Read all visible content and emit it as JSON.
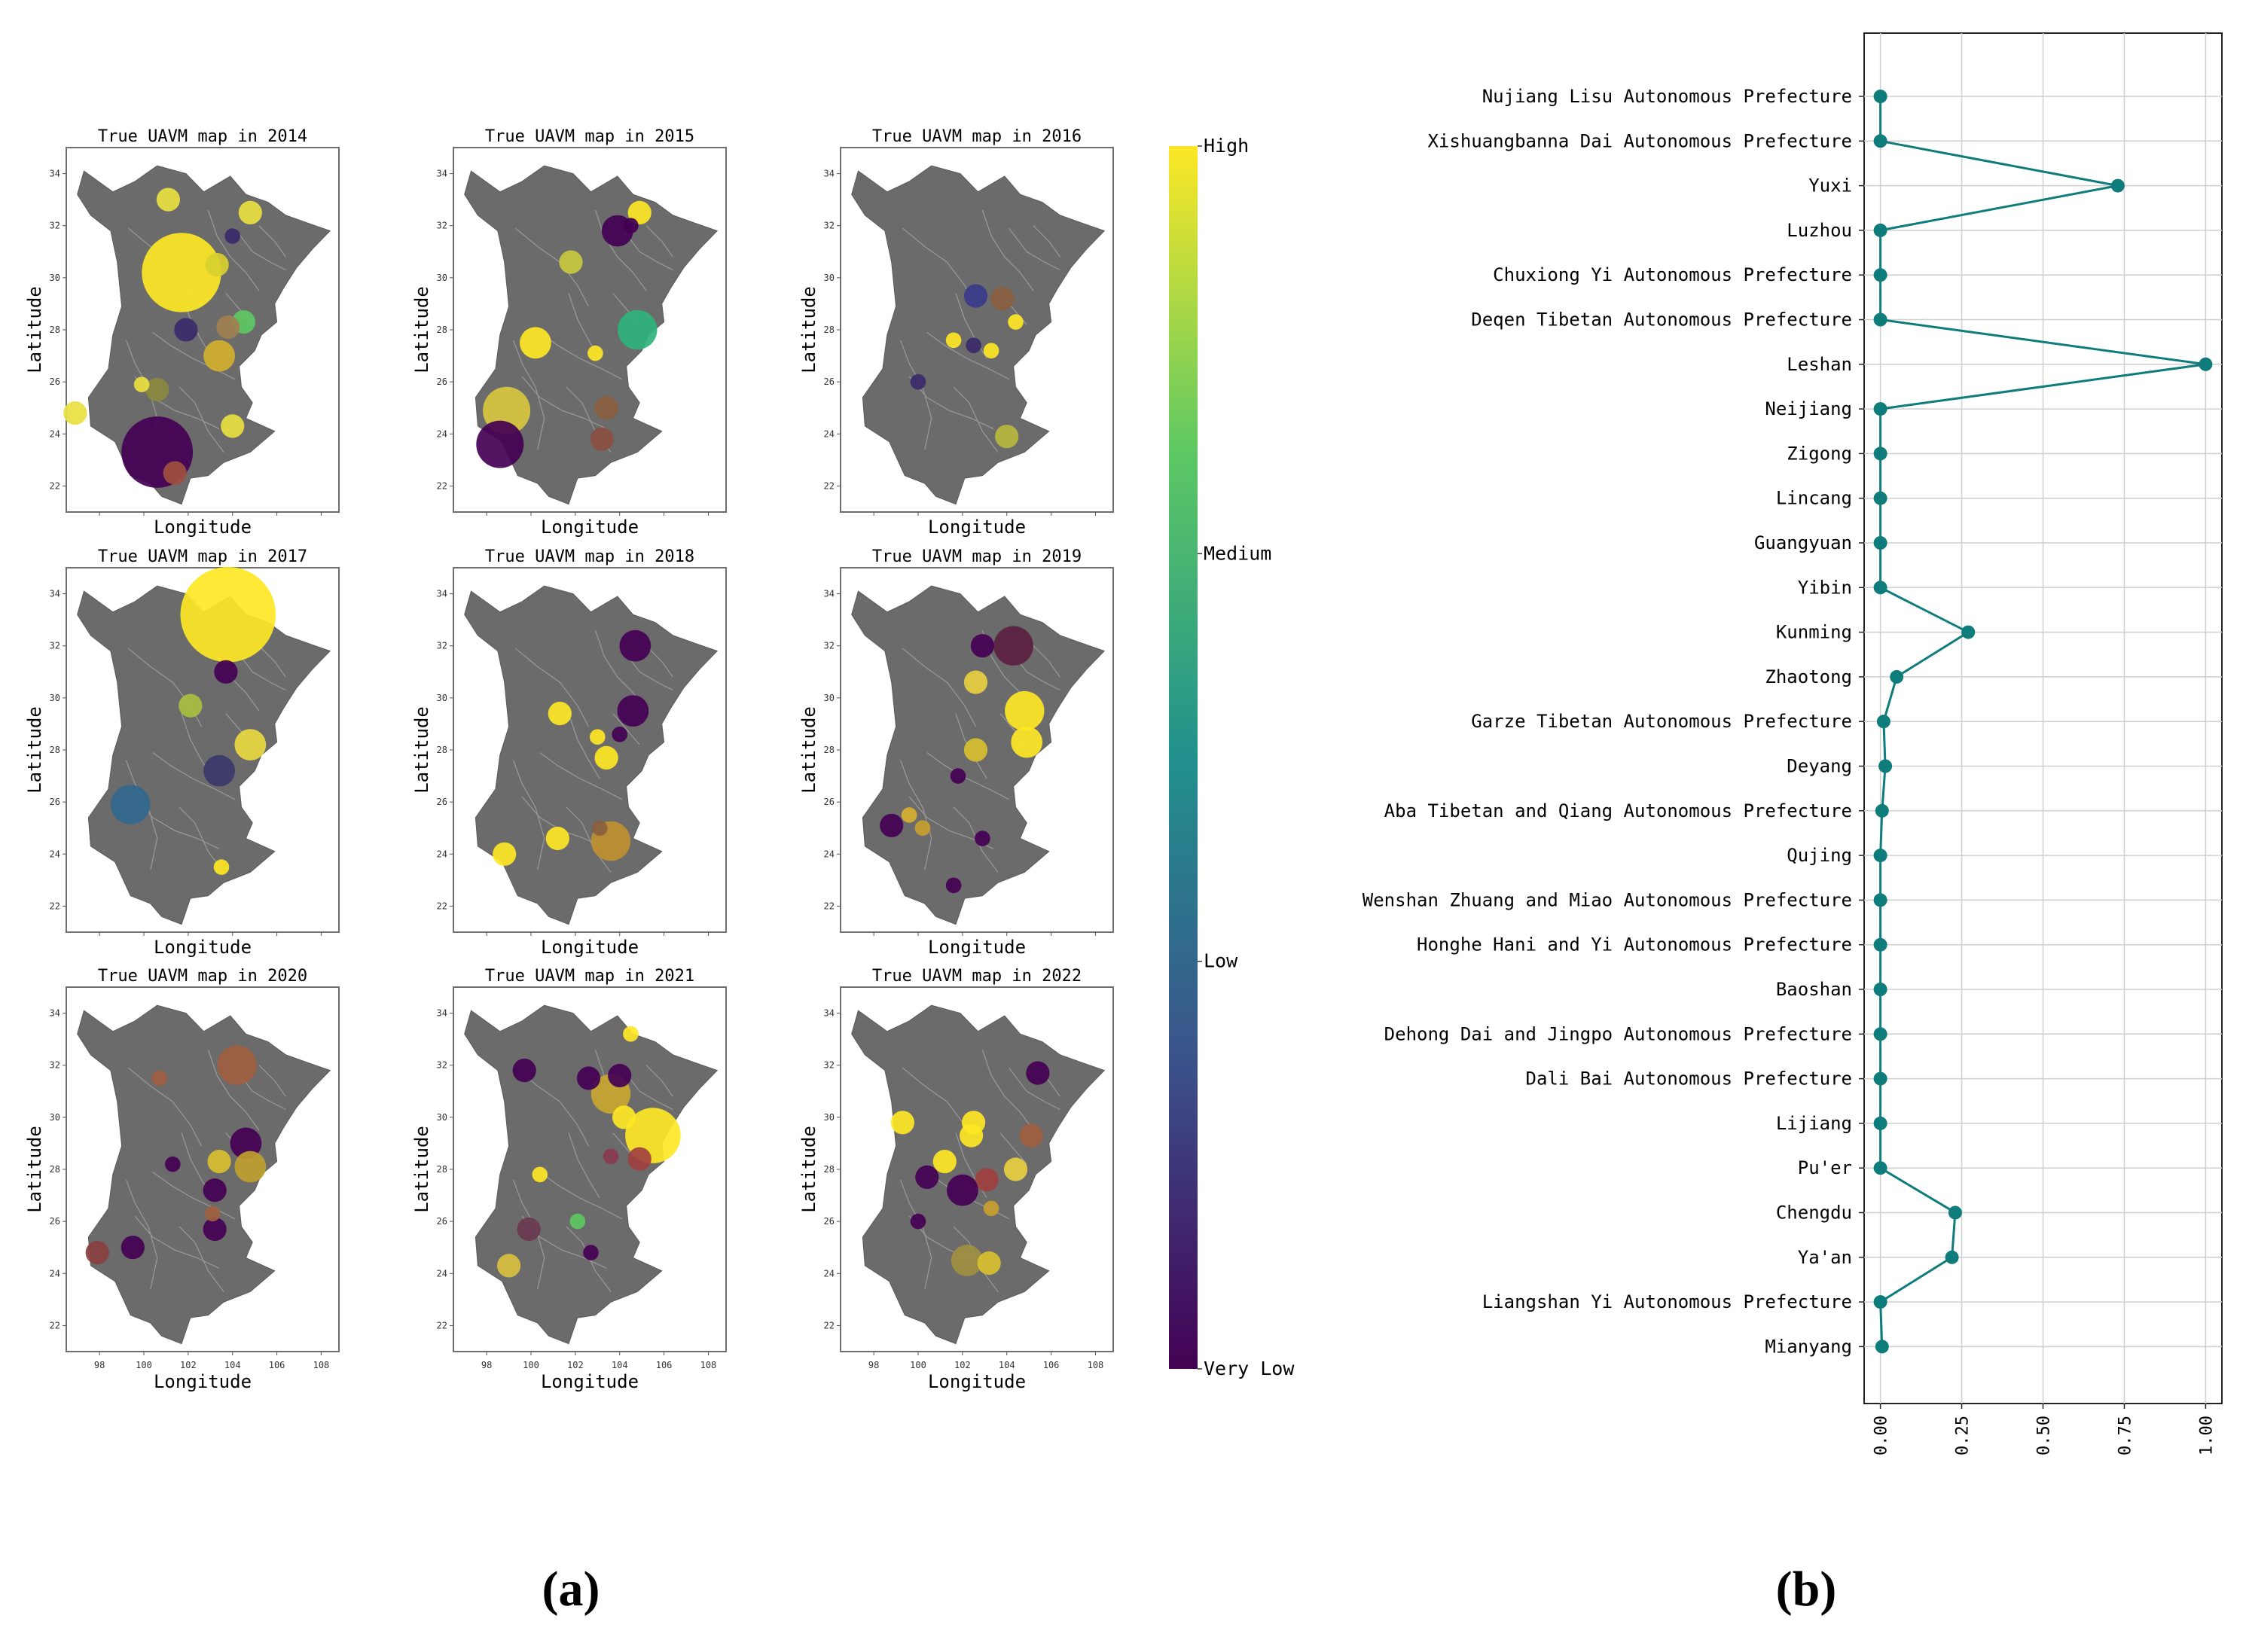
{
  "panel_labels": {
    "a": "(a)",
    "b": "(b)"
  },
  "chart_data": [
    {
      "type": "scatter",
      "panel": "(a)",
      "description_kind": "small multiples bubble maps",
      "xlabel": "Longitude",
      "ylabel": "Latitude",
      "xticks": [
        98,
        100,
        102,
        104,
        106,
        108
      ],
      "yticks": [
        22,
        24,
        26,
        28,
        30,
        32,
        34
      ],
      "xlim": [
        96.5,
        108.8
      ],
      "ylim": [
        21,
        35
      ],
      "map_color": "#6b6b6b",
      "colorbar": {
        "levels": [
          "Very Low",
          "Low",
          "Medium",
          "High"
        ],
        "colors": [
          "#440154",
          "#3b528b",
          "#21908d",
          "#5dc863",
          "#fde725"
        ]
      },
      "maps": [
        {
          "title": "True UAVM map in 2014",
          "points": [
            {
              "x": 101.7,
              "y": 30.2,
              "size": 9,
              "color": "#fde725"
            },
            {
              "x": 100.6,
              "y": 23.3,
              "size": 8,
              "color": "#440154"
            },
            {
              "x": 103.3,
              "y": 30.5,
              "size": 2,
              "color": "#d8d030"
            },
            {
              "x": 101.1,
              "y": 33.0,
              "size": 2,
              "color": "#e8e040"
            },
            {
              "x": 104.8,
              "y": 32.5,
              "size": 2,
              "color": "#e8e040"
            },
            {
              "x": 103.4,
              "y": 27.0,
              "size": 3,
              "color": "#d4b030"
            },
            {
              "x": 101.9,
              "y": 28.0,
              "size": 2,
              "color": "#3b2a6b"
            },
            {
              "x": 104.5,
              "y": 28.3,
              "size": 2,
              "color": "#5dc863"
            },
            {
              "x": 103.8,
              "y": 28.1,
              "size": 2,
              "color": "#a08050"
            },
            {
              "x": 96.9,
              "y": 24.8,
              "size": 2,
              "color": "#e8e040"
            },
            {
              "x": 104.0,
              "y": 24.3,
              "size": 2,
              "color": "#e8e040"
            },
            {
              "x": 100.6,
              "y": 25.7,
              "size": 2,
              "color": "#8a8a40"
            },
            {
              "x": 99.9,
              "y": 25.9,
              "size": 1,
              "color": "#e8e040"
            },
            {
              "x": 101.4,
              "y": 22.5,
              "size": 2,
              "color": "#a05040"
            },
            {
              "x": 104.0,
              "y": 31.6,
              "size": 1,
              "color": "#3b2a6b"
            }
          ]
        },
        {
          "title": "True UAVM map in 2015",
          "points": [
            {
              "x": 98.9,
              "y": 24.9,
              "size": 5,
              "color": "#d8c840"
            },
            {
              "x": 98.6,
              "y": 23.6,
              "size": 5,
              "color": "#440154"
            },
            {
              "x": 104.8,
              "y": 28.0,
              "size": 4,
              "color": "#2fb47c"
            },
            {
              "x": 103.9,
              "y": 31.8,
              "size": 3,
              "color": "#440154"
            },
            {
              "x": 104.9,
              "y": 32.5,
              "size": 2,
              "color": "#fde725"
            },
            {
              "x": 101.8,
              "y": 30.6,
              "size": 2,
              "color": "#c8c840"
            },
            {
              "x": 100.2,
              "y": 27.5,
              "size": 3,
              "color": "#fde725"
            },
            {
              "x": 103.4,
              "y": 25.0,
              "size": 2,
              "color": "#8a6040"
            },
            {
              "x": 103.2,
              "y": 23.8,
              "size": 2,
              "color": "#8a5040"
            },
            {
              "x": 102.9,
              "y": 27.1,
              "size": 1,
              "color": "#fde725"
            },
            {
              "x": 104.5,
              "y": 32.0,
              "size": 1,
              "color": "#440154"
            }
          ]
        },
        {
          "title": "True UAVM map in 2016",
          "points": [
            {
              "x": 102.6,
              "y": 29.3,
              "size": 2,
              "color": "#3b3a8b"
            },
            {
              "x": 103.8,
              "y": 29.2,
              "size": 2,
              "color": "#8a6040"
            },
            {
              "x": 102.5,
              "y": 27.4,
              "size": 1,
              "color": "#3b2a6b"
            },
            {
              "x": 103.3,
              "y": 27.2,
              "size": 1,
              "color": "#fde725"
            },
            {
              "x": 101.6,
              "y": 27.6,
              "size": 1,
              "color": "#fde725"
            },
            {
              "x": 104.4,
              "y": 28.3,
              "size": 1,
              "color": "#fde725"
            },
            {
              "x": 104.0,
              "y": 23.9,
              "size": 2,
              "color": "#b8b840"
            },
            {
              "x": 100.0,
              "y": 26.0,
              "size": 1,
              "color": "#3b2a6b"
            }
          ]
        },
        {
          "title": "True UAVM map in 2017",
          "points": [
            {
              "x": 103.8,
              "y": 33.2,
              "size": 11,
              "color": "#fde725"
            },
            {
              "x": 99.4,
              "y": 25.9,
              "size": 4,
              "color": "#31688e"
            },
            {
              "x": 103.4,
              "y": 27.2,
              "size": 3,
              "color": "#3b3a6b"
            },
            {
              "x": 104.8,
              "y": 28.2,
              "size": 3,
              "color": "#e8d840"
            },
            {
              "x": 102.1,
              "y": 29.7,
              "size": 2,
              "color": "#a8c040"
            },
            {
              "x": 103.7,
              "y": 31.0,
              "size": 2,
              "color": "#440154"
            },
            {
              "x": 103.5,
              "y": 23.5,
              "size": 1,
              "color": "#fde725"
            }
          ]
        },
        {
          "title": "True UAVM map in 2018",
          "points": [
            {
              "x": 104.7,
              "y": 32.0,
              "size": 3,
              "color": "#440154"
            },
            {
              "x": 104.6,
              "y": 29.5,
              "size": 3,
              "color": "#440154"
            },
            {
              "x": 101.3,
              "y": 29.4,
              "size": 2,
              "color": "#fde725"
            },
            {
              "x": 104.0,
              "y": 28.6,
              "size": 1,
              "color": "#440154"
            },
            {
              "x": 103.4,
              "y": 27.7,
              "size": 2,
              "color": "#fde725"
            },
            {
              "x": 103.0,
              "y": 28.5,
              "size": 1,
              "color": "#fde725"
            },
            {
              "x": 103.6,
              "y": 24.5,
              "size": 4,
              "color": "#c09030"
            },
            {
              "x": 101.2,
              "y": 24.6,
              "size": 2,
              "color": "#fde725"
            },
            {
              "x": 98.8,
              "y": 24.0,
              "size": 2,
              "color": "#fde725"
            },
            {
              "x": 103.1,
              "y": 25.0,
              "size": 1,
              "color": "#8a6040"
            }
          ]
        },
        {
          "title": "True UAVM map in 2019",
          "points": [
            {
              "x": 104.3,
              "y": 32.0,
              "size": 4,
              "color": "#5a2040"
            },
            {
              "x": 102.9,
              "y": 32.0,
              "size": 2,
              "color": "#440154"
            },
            {
              "x": 104.8,
              "y": 29.5,
              "size": 4,
              "color": "#fde725"
            },
            {
              "x": 104.9,
              "y": 28.3,
              "size": 3,
              "color": "#fde725"
            },
            {
              "x": 102.6,
              "y": 30.6,
              "size": 2,
              "color": "#e8d040"
            },
            {
              "x": 102.6,
              "y": 28.0,
              "size": 2,
              "color": "#d8c030"
            },
            {
              "x": 98.8,
              "y": 25.1,
              "size": 2,
              "color": "#440154"
            },
            {
              "x": 99.6,
              "y": 25.5,
              "size": 1,
              "color": "#d8b030"
            },
            {
              "x": 100.2,
              "y": 25.0,
              "size": 1,
              "color": "#c8a030"
            },
            {
              "x": 102.9,
              "y": 24.6,
              "size": 1,
              "color": "#440154"
            },
            {
              "x": 101.6,
              "y": 22.8,
              "size": 1,
              "color": "#440154"
            },
            {
              "x": 101.8,
              "y": 27.0,
              "size": 1,
              "color": "#440154"
            }
          ]
        },
        {
          "title": "True UAVM map in 2020",
          "points": [
            {
              "x": 104.2,
              "y": 32.0,
              "size": 4,
              "color": "#a06040"
            },
            {
              "x": 104.6,
              "y": 29.0,
              "size": 3,
              "color": "#440154"
            },
            {
              "x": 104.8,
              "y": 28.1,
              "size": 3,
              "color": "#c0a030"
            },
            {
              "x": 103.4,
              "y": 28.3,
              "size": 2,
              "color": "#d8c030"
            },
            {
              "x": 103.2,
              "y": 27.2,
              "size": 2,
              "color": "#440154"
            },
            {
              "x": 103.2,
              "y": 25.7,
              "size": 2,
              "color": "#440154"
            },
            {
              "x": 99.5,
              "y": 25.0,
              "size": 2,
              "color": "#440154"
            },
            {
              "x": 97.9,
              "y": 24.8,
              "size": 2,
              "color": "#8a4040"
            },
            {
              "x": 101.3,
              "y": 28.2,
              "size": 1,
              "color": "#440154"
            },
            {
              "x": 103.1,
              "y": 26.3,
              "size": 1,
              "color": "#a06040"
            },
            {
              "x": 100.7,
              "y": 31.5,
              "size": 1,
              "color": "#a06040"
            }
          ]
        },
        {
          "title": "True UAVM map in 2021",
          "points": [
            {
              "x": 105.5,
              "y": 29.3,
              "size": 6,
              "color": "#fde725"
            },
            {
              "x": 103.6,
              "y": 30.9,
              "size": 4,
              "color": "#c8a830"
            },
            {
              "x": 102.6,
              "y": 31.5,
              "size": 2,
              "color": "#440154"
            },
            {
              "x": 104.0,
              "y": 31.6,
              "size": 2,
              "color": "#440154"
            },
            {
              "x": 104.2,
              "y": 30.0,
              "size": 2,
              "color": "#fde725"
            },
            {
              "x": 99.7,
              "y": 31.8,
              "size": 2,
              "color": "#440154"
            },
            {
              "x": 104.9,
              "y": 28.4,
              "size": 2,
              "color": "#a04040"
            },
            {
              "x": 99.9,
              "y": 25.7,
              "size": 2,
              "color": "#6a3a50"
            },
            {
              "x": 99.0,
              "y": 24.3,
              "size": 2,
              "color": "#d8c040"
            },
            {
              "x": 103.6,
              "y": 28.5,
              "size": 1,
              "color": "#8a3a50"
            },
            {
              "x": 102.7,
              "y": 24.8,
              "size": 1,
              "color": "#440154"
            },
            {
              "x": 102.1,
              "y": 26.0,
              "size": 1,
              "color": "#5dc863"
            },
            {
              "x": 104.5,
              "y": 33.2,
              "size": 1,
              "color": "#fde725"
            },
            {
              "x": 100.4,
              "y": 27.8,
              "size": 1,
              "color": "#fde725"
            }
          ]
        },
        {
          "title": "True UAVM map in 2022",
          "points": [
            {
              "x": 105.4,
              "y": 31.7,
              "size": 2,
              "color": "#440154"
            },
            {
              "x": 102.5,
              "y": 29.8,
              "size": 2,
              "color": "#fde725"
            },
            {
              "x": 102.4,
              "y": 29.3,
              "size": 2,
              "color": "#fde725"
            },
            {
              "x": 105.1,
              "y": 29.3,
              "size": 2,
              "color": "#a06040"
            },
            {
              "x": 104.4,
              "y": 28.0,
              "size": 2,
              "color": "#e8d040"
            },
            {
              "x": 103.1,
              "y": 27.6,
              "size": 2,
              "color": "#a04040"
            },
            {
              "x": 102.0,
              "y": 27.2,
              "size": 3,
              "color": "#440154"
            },
            {
              "x": 100.4,
              "y": 27.7,
              "size": 2,
              "color": "#440154"
            },
            {
              "x": 101.2,
              "y": 28.3,
              "size": 2,
              "color": "#fde725"
            },
            {
              "x": 99.3,
              "y": 29.8,
              "size": 2,
              "color": "#fde725"
            },
            {
              "x": 102.2,
              "y": 24.5,
              "size": 3,
              "color": "#a09040"
            },
            {
              "x": 103.2,
              "y": 24.4,
              "size": 2,
              "color": "#d8c030"
            },
            {
              "x": 100.0,
              "y": 26.0,
              "size": 1,
              "color": "#440154"
            },
            {
              "x": 103.3,
              "y": 26.5,
              "size": 1,
              "color": "#c8a030"
            }
          ]
        }
      ]
    },
    {
      "type": "line",
      "panel": "(b)",
      "orientation": "horizontal",
      "color": "#0e7c7b",
      "categories": [
        "Nujiang Lisu Autonomous Prefecture",
        "Xishuangbanna Dai Autonomous Prefecture",
        "Yuxi",
        "Luzhou",
        "Chuxiong Yi Autonomous Prefecture",
        "Deqen Tibetan Autonomous Prefecture",
        "Leshan",
        "Neijiang",
        "Zigong",
        "Lincang",
        "Guangyuan",
        "Yibin",
        "Kunming",
        "Zhaotong",
        "Garze Tibetan Autonomous Prefecture",
        "Deyang",
        "Aba Tibetan and Qiang Autonomous Prefecture",
        "Qujing",
        "Wenshan Zhuang and Miao Autonomous Prefecture",
        "Honghe Hani and Yi Autonomous Prefecture",
        "Baoshan",
        "Dehong Dai and Jingpo Autonomous Prefecture",
        "Dali Bai Autonomous Prefecture",
        "Lijiang",
        "Pu'er",
        "Chengdu",
        "Ya'an",
        "Liangshan Yi Autonomous Prefecture",
        "Mianyang"
      ],
      "values": [
        0.0,
        0.0,
        0.73,
        0.0,
        0.0,
        0.0,
        1.0,
        0.0,
        0.0,
        0.0,
        0.0,
        0.0,
        0.27,
        0.05,
        0.01,
        0.015,
        0.005,
        0.0,
        0.0,
        0.0,
        0.0,
        0.0,
        0.0,
        0.0,
        0.0,
        0.23,
        0.22,
        0.0,
        0.005
      ],
      "xlim": [
        -0.05,
        1.05
      ],
      "xticks": [
        "0.00",
        "0.25",
        "0.50",
        "0.75",
        "1.00"
      ],
      "xtick_values": [
        0,
        0.25,
        0.5,
        0.75,
        1.0
      ],
      "grid": true
    }
  ]
}
